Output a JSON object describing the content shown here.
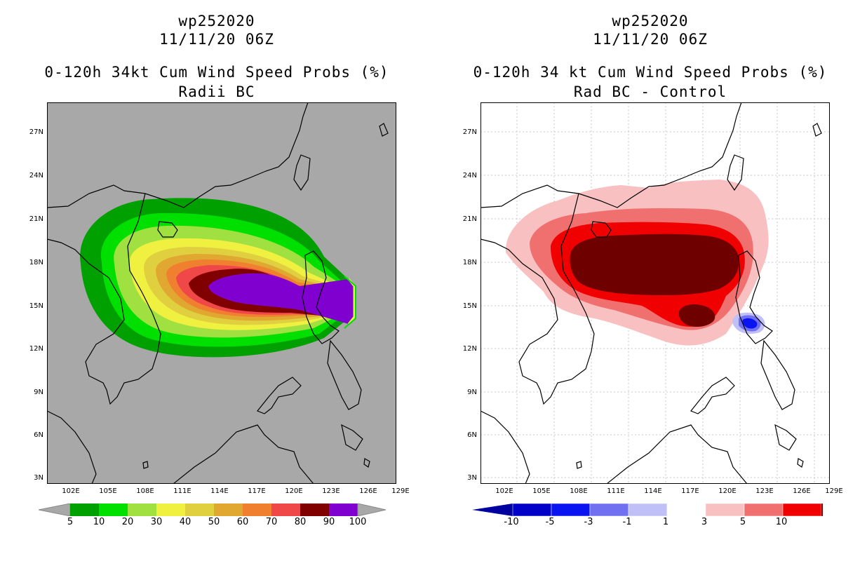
{
  "left": {
    "title_line1": "wp252020",
    "title_line2": "11/11/20 06Z",
    "title_line3": "0-120h 34kt Cum Wind Speed Probs (%)",
    "title_line4": "Radii BC",
    "colorbar_labels": [
      "5",
      "10",
      "20",
      "30",
      "40",
      "50",
      "60",
      "70",
      "80",
      "90",
      "100"
    ],
    "colorbar_colors": [
      "#00a000",
      "#00e000",
      "#a0e040",
      "#f0f040",
      "#e0d040",
      "#e0a830",
      "#f08030",
      "#f04848",
      "#800000",
      "#8000d0"
    ]
  },
  "right": {
    "title_line1": "wp252020",
    "title_line2": "11/11/20 06Z",
    "title_line3": "0-120h 34 kt Cum Wind Speed Probs (%)",
    "title_line4": "Rad BC - Control",
    "colorbar_labels": [
      "-10",
      "-5",
      "-3",
      "-1",
      "1",
      "3",
      "5",
      "10"
    ],
    "colorbar_colors": [
      "#0000c8",
      "#0a14f0",
      "#7070f0",
      "#c0c0f8",
      "#ffffff",
      "#f8c0c0",
      "#f07070",
      "#f00000"
    ],
    "colorbar_end_low": "#0000a0",
    "colorbar_end_high": "#6e0000"
  },
  "lat_labels": [
    "27N",
    "24N",
    "21N",
    "18N",
    "15N",
    "12N",
    "9N",
    "6N",
    "3N"
  ],
  "lon_labels": [
    "102E",
    "105E",
    "108E",
    "111E",
    "114E",
    "117E",
    "120E",
    "123E",
    "126E",
    "129E"
  ]
}
